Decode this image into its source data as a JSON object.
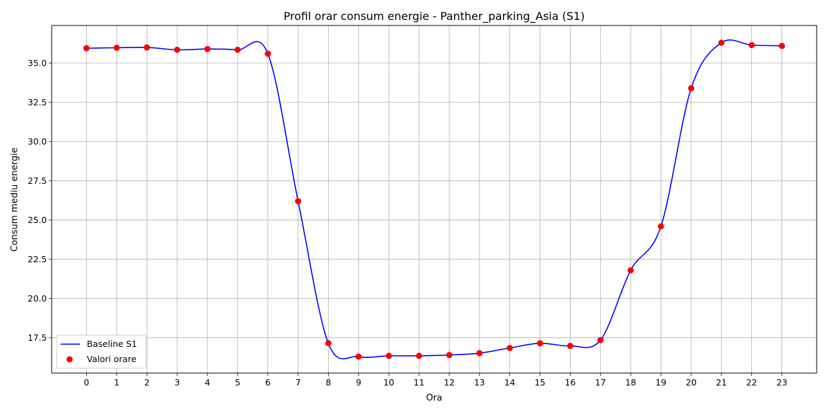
{
  "chart_data": {
    "type": "line",
    "title": "Profil orar consum energie - Panther_parking_Asia (S1)",
    "xlabel": "Ora",
    "ylabel": "Consum mediu energie",
    "x": [
      0,
      1,
      2,
      3,
      4,
      5,
      6,
      7,
      8,
      9,
      10,
      11,
      12,
      13,
      14,
      15,
      16,
      17,
      18,
      19,
      20,
      21,
      22,
      23
    ],
    "xticks": [
      "0",
      "1",
      "2",
      "3",
      "4",
      "5",
      "6",
      "7",
      "8",
      "9",
      "10",
      "11",
      "12",
      "13",
      "14",
      "15",
      "16",
      "17",
      "18",
      "19",
      "20",
      "21",
      "22",
      "23"
    ],
    "yticks": [
      "17.5",
      "20.0",
      "22.5",
      "25.0",
      "27.5",
      "30.0",
      "32.5",
      "35.0"
    ],
    "ytick_values": [
      17.5,
      20.0,
      22.5,
      25.0,
      27.5,
      30.0,
      32.5,
      35.0
    ],
    "xlim": [
      -1.15,
      24.15
    ],
    "ylim": [
      15.25,
      37.4
    ],
    "grid": true,
    "legend_position": "lower-left",
    "series": [
      {
        "name": "Baseline S1",
        "kind": "line",
        "color": "#0000ff",
        "values": [
          35.95,
          35.98,
          36.0,
          35.85,
          35.9,
          35.85,
          35.6,
          26.2,
          17.15,
          16.3,
          16.35,
          16.35,
          16.4,
          16.52,
          16.85,
          17.15,
          16.98,
          17.35,
          21.8,
          24.6,
          33.4,
          36.3,
          36.15,
          36.1
        ]
      },
      {
        "name": "Valori orare",
        "kind": "scatter",
        "color": "#ff0000",
        "values": [
          35.95,
          35.98,
          36.0,
          35.85,
          35.9,
          35.85,
          35.6,
          26.2,
          17.15,
          16.3,
          16.35,
          16.35,
          16.4,
          16.52,
          16.85,
          17.15,
          16.98,
          17.35,
          21.8,
          24.6,
          33.4,
          36.3,
          36.15,
          36.1
        ]
      }
    ]
  }
}
